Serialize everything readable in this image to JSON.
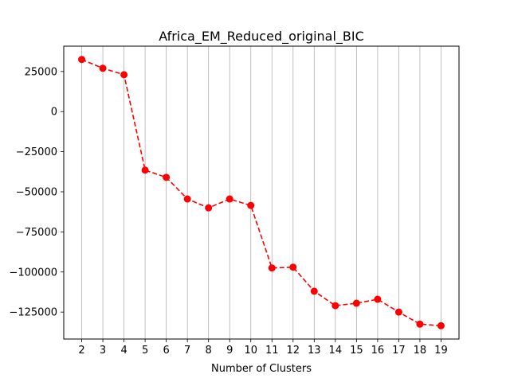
{
  "chart_data": {
    "type": "line",
    "title": "Africa_EM_Reduced_original_BIC",
    "xlabel": "Number of Clusters",
    "ylabel": "",
    "x": [
      2,
      3,
      4,
      5,
      6,
      7,
      8,
      9,
      10,
      11,
      12,
      13,
      14,
      15,
      16,
      17,
      18,
      19
    ],
    "series": [
      {
        "values": [
          32500,
          27000,
          23000,
          -36500,
          -41000,
          -54500,
          -60000,
          -54500,
          -58500,
          -97500,
          -97000,
          -112000,
          -121000,
          -119500,
          -117000,
          -125000,
          -132500,
          -133500
        ],
        "color": "#ff0000",
        "line_style": "dashed",
        "marker": "circle"
      }
    ],
    "xticks": [
      2,
      3,
      4,
      5,
      6,
      7,
      8,
      9,
      10,
      11,
      12,
      13,
      14,
      15,
      16,
      17,
      18,
      19
    ],
    "yticks": [
      25000,
      0,
      -25000,
      -50000,
      -75000,
      -100000,
      -125000
    ],
    "xlim": [
      1.15,
      19.85
    ],
    "ylim": [
      -141800,
      40800
    ],
    "grid": "vertical",
    "grid_color": "#b0b0b0"
  }
}
